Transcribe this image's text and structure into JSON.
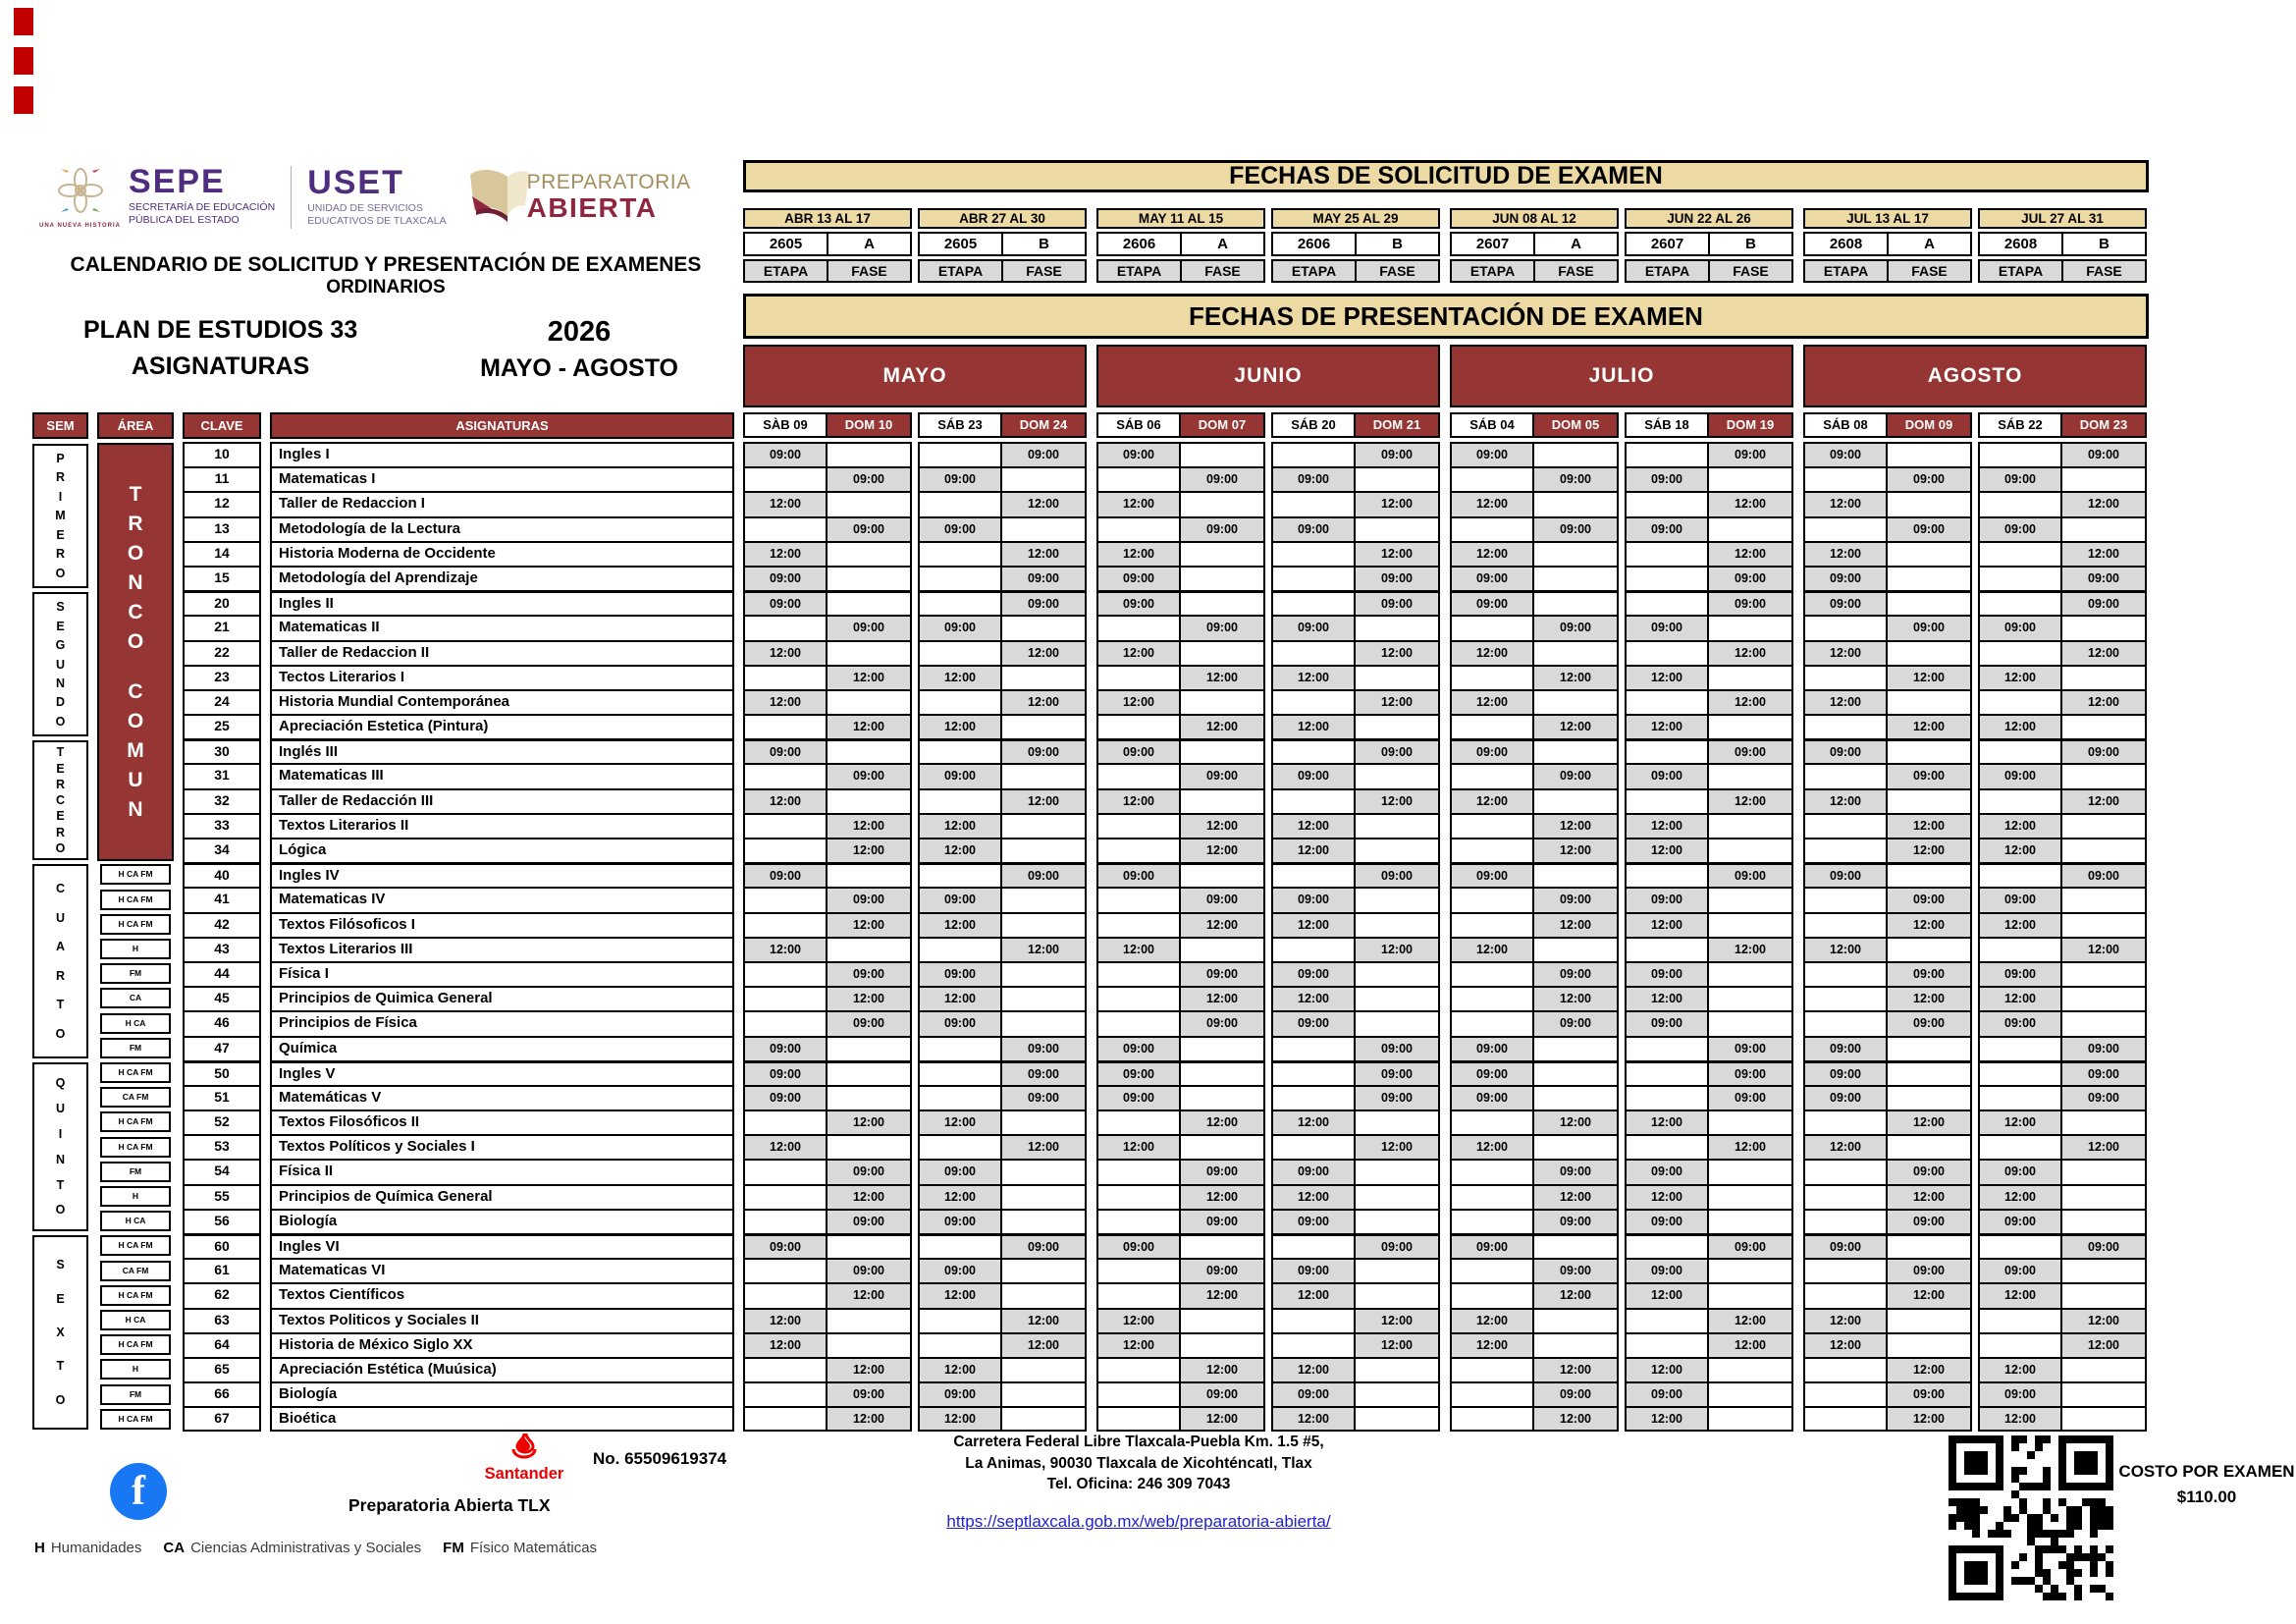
{
  "branding": {
    "sepe": {
      "name": "SEPE",
      "line1": "SECRETARÍA DE EDUCACIÓN",
      "line2": "PÚBLICA DEL ESTADO",
      "tagline": "UNA NUEVA HISTORIA"
    },
    "uset": {
      "name": "USET",
      "line1": "UNIDAD DE SERVICIOS",
      "line2": "EDUCATIVOS DE TLAXCALA"
    },
    "prepa": {
      "line1": "PREPARATORIA",
      "line2": "ABIERTA"
    }
  },
  "header": {
    "title1": "CALENDARIO DE SOLICITUD Y PRESENTACIÓN DE EXAMENES",
    "title2": "ORDINARIOS",
    "plan": "PLAN DE ESTUDIOS 33",
    "subjects_label": "ASIGNATURAS",
    "year": "2026",
    "period": "MAYO - AGOSTO"
  },
  "solicitud": {
    "title": "FECHAS DE SOLICITUD DE EXAMEN",
    "etapa_label": "ETAPA",
    "fase_label": "FASE",
    "blocks": [
      {
        "dates": "ABR 13 AL 17",
        "etapa": "2605",
        "fase": "A"
      },
      {
        "dates": "ABR 27 AL 30",
        "etapa": "2605",
        "fase": "B"
      },
      {
        "dates": "MAY 11 AL 15",
        "etapa": "2606",
        "fase": "A"
      },
      {
        "dates": "MAY 25 AL 29",
        "etapa": "2606",
        "fase": "B"
      },
      {
        "dates": "JUN 08 AL 12",
        "etapa": "2607",
        "fase": "A"
      },
      {
        "dates": "JUN 22 AL 26",
        "etapa": "2607",
        "fase": "B"
      },
      {
        "dates": "JUL 13 AL 17",
        "etapa": "2608",
        "fase": "A"
      },
      {
        "dates": "JUL 27 AL 31",
        "etapa": "2608",
        "fase": "B"
      }
    ]
  },
  "presentacion": {
    "title": "FECHAS DE PRESENTACIÓN DE EXAMEN",
    "months": [
      {
        "name": "MAYO",
        "days": [
          "SÀB 09",
          "DOM 10",
          "SÁB 23",
          "DOM 24"
        ]
      },
      {
        "name": "JUNIO",
        "days": [
          "SÁB 06",
          "DOM 07",
          "SÁB 20",
          "DOM 21"
        ]
      },
      {
        "name": "JULIO",
        "days": [
          "SÁB 04",
          "DOM 05",
          "SÁB 18",
          "DOM 19"
        ]
      },
      {
        "name": "AGOSTO",
        "days": [
          "SÁB 08",
          "DOM 09",
          "SÁB 22",
          "DOM 23"
        ]
      }
    ]
  },
  "table": {
    "headers": {
      "sem": "SEM",
      "area": "ÁREA",
      "clave": "CLAVE",
      "asig": "ASIGNATURAS"
    },
    "tronco": [
      "TRONCO",
      "COMUN"
    ],
    "semesters": [
      {
        "name": "PRIMERO",
        "rows": 6
      },
      {
        "name": "SEGUNDO",
        "rows": 6
      },
      {
        "name": "TERCERO",
        "rows": 5
      },
      {
        "name": "CUARTO",
        "rows": 8
      },
      {
        "name": "QUINTO",
        "rows": 7
      },
      {
        "name": "SEXTO",
        "rows": 8
      }
    ],
    "rows": [
      {
        "clave": "10",
        "area": "",
        "name": "Ingles I",
        "times": [
          "09:00",
          "",
          "",
          "09:00",
          "09:00",
          "",
          "",
          "09:00",
          "09:00",
          "",
          "",
          "09:00",
          "09:00",
          "",
          "",
          "09:00"
        ]
      },
      {
        "clave": "11",
        "area": "",
        "name": "Matematicas  I",
        "times": [
          "",
          "09:00",
          "09:00",
          "",
          "",
          "09:00",
          "09:00",
          "",
          "",
          "09:00",
          "09:00",
          "",
          "",
          "09:00",
          "09:00",
          ""
        ]
      },
      {
        "clave": "12",
        "area": "",
        "name": "Taller de Redaccion I",
        "times": [
          "12:00",
          "",
          "",
          "12:00",
          "12:00",
          "",
          "",
          "12:00",
          "12:00",
          "",
          "",
          "12:00",
          "12:00",
          "",
          "",
          "12:00"
        ]
      },
      {
        "clave": "13",
        "area": "",
        "name": "Metodología de la Lectura",
        "times": [
          "",
          "09:00",
          "09:00",
          "",
          "",
          "09:00",
          "09:00",
          "",
          "",
          "09:00",
          "09:00",
          "",
          "",
          "09:00",
          "09:00",
          ""
        ]
      },
      {
        "clave": "14",
        "area": "",
        "name": "Historia Moderna de Occidente",
        "times": [
          "12:00",
          "",
          "",
          "12:00",
          "12:00",
          "",
          "",
          "12:00",
          "12:00",
          "",
          "",
          "12:00",
          "12:00",
          "",
          "",
          "12:00"
        ]
      },
      {
        "clave": "15",
        "area": "",
        "name": "Metodología del Aprendizaje",
        "times": [
          "09:00",
          "",
          "",
          "09:00",
          "09:00",
          "",
          "",
          "09:00",
          "09:00",
          "",
          "",
          "09:00",
          "09:00",
          "",
          "",
          "09:00"
        ]
      },
      {
        "clave": "20",
        "area": "",
        "name": "Ingles II",
        "times": [
          "09:00",
          "",
          "",
          "09:00",
          "09:00",
          "",
          "",
          "09:00",
          "09:00",
          "",
          "",
          "09:00",
          "09:00",
          "",
          "",
          "09:00"
        ]
      },
      {
        "clave": "21",
        "area": "",
        "name": "Matematicas II",
        "times": [
          "",
          "09:00",
          "09:00",
          "",
          "",
          "09:00",
          "09:00",
          "",
          "",
          "09:00",
          "09:00",
          "",
          "",
          "09:00",
          "09:00",
          ""
        ]
      },
      {
        "clave": "22",
        "area": "",
        "name": "Taller de Redaccion II",
        "times": [
          "12:00",
          "",
          "",
          "12:00",
          "12:00",
          "",
          "",
          "12:00",
          "12:00",
          "",
          "",
          "12:00",
          "12:00",
          "",
          "",
          "12:00"
        ]
      },
      {
        "clave": "23",
        "area": "",
        "name": "Tectos Literarios I",
        "times": [
          "",
          "12:00",
          "12:00",
          "",
          "",
          "12:00",
          "12:00",
          "",
          "",
          "12:00",
          "12:00",
          "",
          "",
          "12:00",
          "12:00",
          ""
        ]
      },
      {
        "clave": "24",
        "area": "",
        "name": "Historia Mundial Contemporánea",
        "times": [
          "12:00",
          "",
          "",
          "12:00",
          "12:00",
          "",
          "",
          "12:00",
          "12:00",
          "",
          "",
          "12:00",
          "12:00",
          "",
          "",
          "12:00"
        ]
      },
      {
        "clave": "25",
        "area": "",
        "name": "Apreciación Estetica (Pintura)",
        "times": [
          "",
          "12:00",
          "12:00",
          "",
          "",
          "12:00",
          "12:00",
          "",
          "",
          "12:00",
          "12:00",
          "",
          "",
          "12:00",
          "12:00",
          ""
        ]
      },
      {
        "clave": "30",
        "area": "",
        "name": "Inglés III",
        "times": [
          "09:00",
          "",
          "",
          "09:00",
          "09:00",
          "",
          "",
          "09:00",
          "09:00",
          "",
          "",
          "09:00",
          "09:00",
          "",
          "",
          "09:00"
        ]
      },
      {
        "clave": "31",
        "area": "",
        "name": "Matematicas III",
        "times": [
          "",
          "09:00",
          "09:00",
          "",
          "",
          "09:00",
          "09:00",
          "",
          "",
          "09:00",
          "09:00",
          "",
          "",
          "09:00",
          "09:00",
          ""
        ]
      },
      {
        "clave": "32",
        "area": "",
        "name": "Taller de Redacción III",
        "times": [
          "12:00",
          "",
          "",
          "12:00",
          "12:00",
          "",
          "",
          "12:00",
          "12:00",
          "",
          "",
          "12:00",
          "12:00",
          "",
          "",
          "12:00"
        ]
      },
      {
        "clave": "33",
        "area": "",
        "name": "Textos Literarios II",
        "times": [
          "",
          "12:00",
          "12:00",
          "",
          "",
          "12:00",
          "12:00",
          "",
          "",
          "12:00",
          "12:00",
          "",
          "",
          "12:00",
          "12:00",
          ""
        ]
      },
      {
        "clave": "34",
        "area": "",
        "name": "Lógica",
        "times": [
          "",
          "12:00",
          "12:00",
          "",
          "",
          "12:00",
          "12:00",
          "",
          "",
          "12:00",
          "12:00",
          "",
          "",
          "12:00",
          "12:00",
          ""
        ]
      },
      {
        "clave": "40",
        "area": "H CA FM",
        "name": "Ingles IV",
        "times": [
          "09:00",
          "",
          "",
          "09:00",
          "09:00",
          "",
          "",
          "09:00",
          "09:00",
          "",
          "",
          "09:00",
          "09:00",
          "",
          "",
          "09:00"
        ]
      },
      {
        "clave": "41",
        "area": "H CA FM",
        "name": "Matematicas IV",
        "times": [
          "",
          "09:00",
          "09:00",
          "",
          "",
          "09:00",
          "09:00",
          "",
          "",
          "09:00",
          "09:00",
          "",
          "",
          "09:00",
          "09:00",
          ""
        ]
      },
      {
        "clave": "42",
        "area": "H CA FM",
        "name": "Textos Filósoficos I",
        "times": [
          "",
          "12:00",
          "12:00",
          "",
          "",
          "12:00",
          "12:00",
          "",
          "",
          "12:00",
          "12:00",
          "",
          "",
          "12:00",
          "12:00",
          ""
        ]
      },
      {
        "clave": "43",
        "area": "H",
        "name": "Textos Literarios III",
        "times": [
          "12:00",
          "",
          "",
          "12:00",
          "12:00",
          "",
          "",
          "12:00",
          "12:00",
          "",
          "",
          "12:00",
          "12:00",
          "",
          "",
          "12:00"
        ]
      },
      {
        "clave": "44",
        "area": "FM",
        "name": "Física I",
        "times": [
          "",
          "09:00",
          "09:00",
          "",
          "",
          "09:00",
          "09:00",
          "",
          "",
          "09:00",
          "09:00",
          "",
          "",
          "09:00",
          "09:00",
          ""
        ]
      },
      {
        "clave": "45",
        "area": "CA",
        "name": "Principios de Quimica General",
        "times": [
          "",
          "12:00",
          "12:00",
          "",
          "",
          "12:00",
          "12:00",
          "",
          "",
          "12:00",
          "12:00",
          "",
          "",
          "12:00",
          "12:00",
          ""
        ]
      },
      {
        "clave": "46",
        "area": "H CA",
        "name": "Principios de Física",
        "times": [
          "",
          "09:00",
          "09:00",
          "",
          "",
          "09:00",
          "09:00",
          "",
          "",
          "09:00",
          "09:00",
          "",
          "",
          "09:00",
          "09:00",
          ""
        ]
      },
      {
        "clave": "47",
        "area": "FM",
        "name": "Química",
        "times": [
          "09:00",
          "",
          "",
          "09:00",
          "09:00",
          "",
          "",
          "09:00",
          "09:00",
          "",
          "",
          "09:00",
          "09:00",
          "",
          "",
          "09:00"
        ]
      },
      {
        "clave": "50",
        "area": "H CA FM",
        "name": "Ingles V",
        "times": [
          "09:00",
          "",
          "",
          "09:00",
          "09:00",
          "",
          "",
          "09:00",
          "09:00",
          "",
          "",
          "09:00",
          "09:00",
          "",
          "",
          "09:00"
        ]
      },
      {
        "clave": "51",
        "area": "CA FM",
        "name": "Matemáticas V",
        "times": [
          "09:00",
          "",
          "",
          "09:00",
          "09:00",
          "",
          "",
          "09:00",
          "09:00",
          "",
          "",
          "09:00",
          "09:00",
          "",
          "",
          "09:00"
        ]
      },
      {
        "clave": "52",
        "area": "H CA FM",
        "name": "Textos Filosóficos II",
        "times": [
          "",
          "12:00",
          "12:00",
          "",
          "",
          "12:00",
          "12:00",
          "",
          "",
          "12:00",
          "12:00",
          "",
          "",
          "12:00",
          "12:00",
          ""
        ]
      },
      {
        "clave": "53",
        "area": "H CA FM",
        "name": "Textos Políticos y Sociales I",
        "times": [
          "12:00",
          "",
          "",
          "12:00",
          "12:00",
          "",
          "",
          "12:00",
          "12:00",
          "",
          "",
          "12:00",
          "12:00",
          "",
          "",
          "12:00"
        ]
      },
      {
        "clave": "54",
        "area": "FM",
        "name": "Física II",
        "times": [
          "",
          "09:00",
          "09:00",
          "",
          "",
          "09:00",
          "09:00",
          "",
          "",
          "09:00",
          "09:00",
          "",
          "",
          "09:00",
          "09:00",
          ""
        ]
      },
      {
        "clave": "55",
        "area": "H",
        "name": "Principios de Química General",
        "times": [
          "",
          "12:00",
          "12:00",
          "",
          "",
          "12:00",
          "12:00",
          "",
          "",
          "12:00",
          "12:00",
          "",
          "",
          "12:00",
          "12:00",
          ""
        ]
      },
      {
        "clave": "56",
        "area": "H CA",
        "name": "Biología",
        "times": [
          "",
          "09:00",
          "09:00",
          "",
          "",
          "09:00",
          "09:00",
          "",
          "",
          "09:00",
          "09:00",
          "",
          "",
          "09:00",
          "09:00",
          ""
        ]
      },
      {
        "clave": "60",
        "area": "H CA FM",
        "name": "Ingles VI",
        "times": [
          "09:00",
          "",
          "",
          "09:00",
          "09:00",
          "",
          "",
          "09:00",
          "09:00",
          "",
          "",
          "09:00",
          "09:00",
          "",
          "",
          "09:00"
        ]
      },
      {
        "clave": "61",
        "area": "CA FM",
        "name": "Matematicas VI",
        "times": [
          "",
          "09:00",
          "09:00",
          "",
          "",
          "09:00",
          "09:00",
          "",
          "",
          "09:00",
          "09:00",
          "",
          "",
          "09:00",
          "09:00",
          ""
        ]
      },
      {
        "clave": "62",
        "area": "H CA FM",
        "name": "Textos Científicos",
        "times": [
          "",
          "12:00",
          "12:00",
          "",
          "",
          "12:00",
          "12:00",
          "",
          "",
          "12:00",
          "12:00",
          "",
          "",
          "12:00",
          "12:00",
          ""
        ]
      },
      {
        "clave": "63",
        "area": "H CA",
        "name": "Textos Politicos y Sociales II",
        "times": [
          "12:00",
          "",
          "",
          "12:00",
          "12:00",
          "",
          "",
          "12:00",
          "12:00",
          "",
          "",
          "12:00",
          "12:00",
          "",
          "",
          "12:00"
        ]
      },
      {
        "clave": "64",
        "area": "H CA FM",
        "name": "Historia de México Siglo XX",
        "times": [
          "12:00",
          "",
          "",
          "12:00",
          "12:00",
          "",
          "",
          "12:00",
          "12:00",
          "",
          "",
          "12:00",
          "12:00",
          "",
          "",
          "12:00"
        ]
      },
      {
        "clave": "65",
        "area": "H",
        "name": "Apreciación Estética (Muúsica)",
        "times": [
          "",
          "12:00",
          "12:00",
          "",
          "",
          "12:00",
          "12:00",
          "",
          "",
          "12:00",
          "12:00",
          "",
          "",
          "12:00",
          "12:00",
          ""
        ]
      },
      {
        "clave": "66",
        "area": "FM",
        "name": "Biología",
        "times": [
          "",
          "09:00",
          "09:00",
          "",
          "",
          "09:00",
          "09:00",
          "",
          "",
          "09:00",
          "09:00",
          "",
          "",
          "09:00",
          "09:00",
          ""
        ]
      },
      {
        "clave": "67",
        "area": "H CA FM",
        "name": "Bioética",
        "times": [
          "",
          "12:00",
          "12:00",
          "",
          "",
          "12:00",
          "12:00",
          "",
          "",
          "12:00",
          "12:00",
          "",
          "",
          "12:00",
          "12:00",
          ""
        ]
      }
    ]
  },
  "footer": {
    "santander": "Santander",
    "account": "No. 65509619374",
    "prepa_tlx": "Preparatoria Abierta TLX",
    "facebook_letter": "f",
    "address1": "Carretera Federal Libre Tlaxcala-Puebla Km. 1.5 #5,",
    "address2": "La Animas, 90030 Tlaxcala de Xicohténcatl, Tlax",
    "address3": "Tel. Oficina: 246 309 7043",
    "link": "https://septlaxcala.gob.mx/web/preparatoria-abierta/",
    "cost_label": "COSTO POR EXAMEN",
    "cost_value": "$110.00"
  },
  "legend": {
    "items": [
      {
        "key": "H",
        "label": "Humanidades"
      },
      {
        "key": "CA",
        "label": "Ciencias Administrativas y Sociales"
      },
      {
        "key": "FM",
        "label": "Físico Matemáticas"
      }
    ]
  },
  "colors": {
    "darkred": "#963634",
    "tan": "#ecd9a3",
    "gray": "#d9d9d9",
    "purple": "#4f2d7f",
    "maroon": "#8e2640",
    "gold": "#a38e5d",
    "santander": "#ec0000",
    "facebook": "#1877f2",
    "link": "#2222cc",
    "corner": "#c00000"
  }
}
